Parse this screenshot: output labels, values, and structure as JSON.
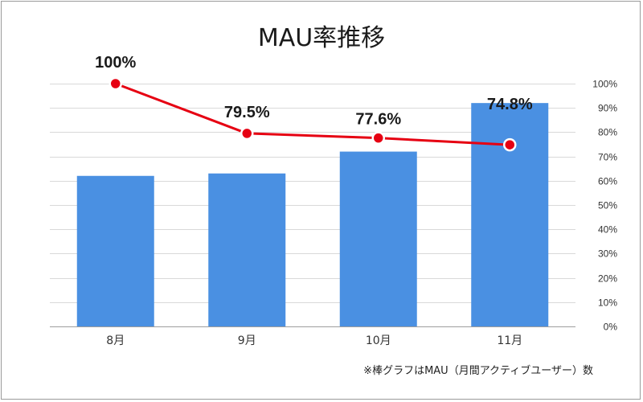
{
  "chart_data": {
    "type": "bar",
    "title": "MAU率推移",
    "categories": [
      "8月",
      "9月",
      "10月",
      "11月"
    ],
    "series": [
      {
        "type": "bar",
        "axis": "left",
        "values": [
          62,
          63,
          72,
          92
        ],
        "color": "#4a90e2"
      },
      {
        "type": "line",
        "axis": "right",
        "values": [
          100,
          79.5,
          77.6,
          74.8
        ],
        "labels": [
          "100%",
          "79.5%",
          "77.6%",
          "74.8%"
        ],
        "color": "#e60012"
      }
    ],
    "y_right": {
      "range": [
        0,
        100
      ],
      "ticks": [
        "0%",
        "10%",
        "20%",
        "30%",
        "40%",
        "50%",
        "60%",
        "70%",
        "80%",
        "90%",
        "100%"
      ]
    },
    "y_left_range": [
      0,
      100
    ],
    "grid": true,
    "footnote": "※棒グラフはMAU（月間アクティブユーザー）数"
  }
}
